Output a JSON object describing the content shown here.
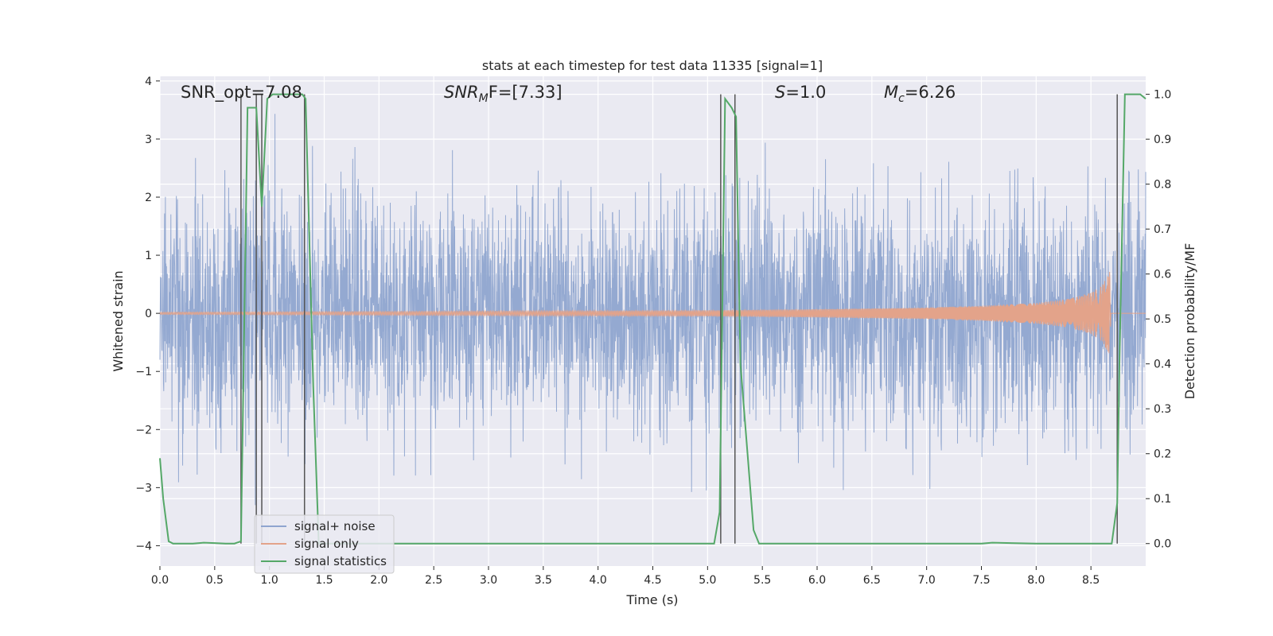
{
  "chart_data": {
    "type": "line",
    "title": "stats at each timestep for test data 11335 [signal=1]",
    "xlabel": "Time (s)",
    "ylabel": "Whitened strain",
    "y2label": "Detection probability/MF",
    "xlim": [
      0,
      9.0
    ],
    "ylim": [
      -4.35,
      4.08
    ],
    "y2lim": [
      -0.05,
      1.04
    ],
    "xticks": [
      0.0,
      0.5,
      1.0,
      1.5,
      2.0,
      2.5,
      3.0,
      3.5,
      4.0,
      4.5,
      5.0,
      5.5,
      6.0,
      6.5,
      7.0,
      7.5,
      8.0,
      8.5
    ],
    "yticks": [
      -4,
      -3,
      -2,
      -1,
      0,
      1,
      2,
      3,
      4
    ],
    "y2ticks": [
      0.0,
      0.1,
      0.2,
      0.3,
      0.4,
      0.5,
      0.6,
      0.7,
      0.8,
      0.9,
      1.0
    ],
    "grid": true,
    "legend_position": "bottom-left",
    "annotations": {
      "snr_opt": "SNR_opt=7.08",
      "snr_mf_sym": "SNR",
      "snr_mf_sub": "M",
      "snr_mf_rest": "F=[7.33]",
      "s_sym": "S",
      "s_rest": "=1.0",
      "mc_sym": "M",
      "mc_sub": "c",
      "mc_rest": "=6.26"
    },
    "series": [
      {
        "name": "signal+ noise",
        "color": "#8fa5cf",
        "axis": "left",
        "style": "noise",
        "envelope_sigma": 1.0,
        "t_range": [
          0,
          9.0
        ]
      },
      {
        "name": "signal only",
        "color": "#e3a38a",
        "axis": "left",
        "style": "chirp",
        "t_merger": 8.68,
        "amplitude_envelope": [
          [
            0.0,
            0.02
          ],
          [
            5.0,
            0.05
          ],
          [
            6.0,
            0.07
          ],
          [
            7.0,
            0.1
          ],
          [
            7.5,
            0.13
          ],
          [
            8.0,
            0.18
          ],
          [
            8.3,
            0.25
          ],
          [
            8.5,
            0.36
          ],
          [
            8.6,
            0.48
          ],
          [
            8.68,
            0.75
          ]
        ]
      },
      {
        "name": "signal statistics",
        "color": "#55a868",
        "axis": "right",
        "x": [
          0.0,
          0.03,
          0.08,
          0.12,
          0.3,
          0.4,
          0.5,
          0.6,
          0.68,
          0.74,
          0.8,
          0.88,
          0.93,
          0.98,
          1.03,
          1.1,
          1.3,
          1.33,
          1.4,
          1.45,
          1.5,
          2.0,
          3.0,
          4.0,
          5.0,
          5.06,
          5.11,
          5.16,
          5.22,
          5.26,
          5.3,
          5.42,
          5.47,
          5.5,
          6.0,
          6.5,
          7.0,
          7.5,
          7.6,
          8.0,
          8.5,
          8.69,
          8.74,
          8.76,
          8.81,
          8.86,
          8.95,
          9.0
        ],
        "y": [
          0.19,
          0.1,
          0.005,
          0.0,
          0.0,
          0.002,
          0.001,
          0.0,
          0.0,
          0.005,
          0.97,
          0.97,
          0.75,
          0.99,
          1.0,
          1.0,
          1.0,
          0.99,
          0.35,
          0.0,
          0.0,
          0.0,
          0.0,
          0.0,
          0.0,
          0.0,
          0.07,
          0.99,
          0.97,
          0.95,
          0.4,
          0.03,
          0.0,
          0.0,
          0.0,
          0.0,
          0.0,
          0.0,
          0.002,
          0.0,
          0.0,
          0.0,
          0.09,
          0.4,
          1.0,
          1.0,
          1.0,
          0.99
        ]
      }
    ],
    "vertical_markers": [
      0.74,
      0.88,
      0.93,
      1.32,
      5.12,
      5.25,
      8.74
    ]
  }
}
